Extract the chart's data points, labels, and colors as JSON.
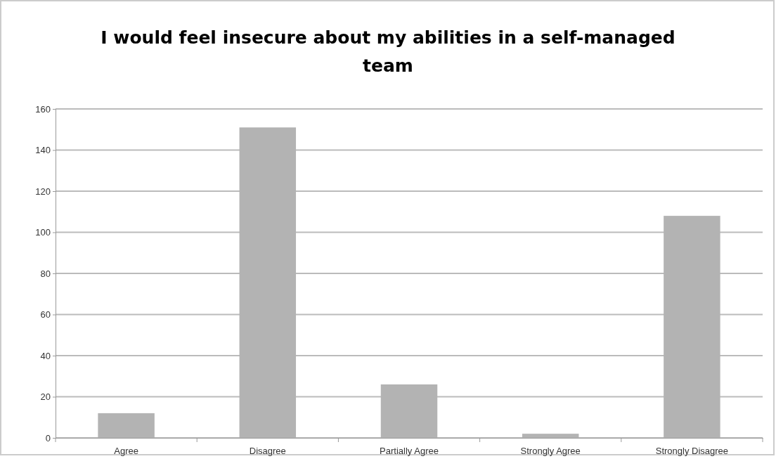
{
  "chart_data": {
    "type": "bar",
    "title": "I would feel insecure about my abilities in a self-managed team",
    "categories": [
      "Agree",
      "Disagree",
      "Partially Agree",
      "Strongly Agree",
      "Strongly Disagree"
    ],
    "values": [
      12,
      151,
      26,
      2,
      108
    ],
    "color": "#b3b3b3",
    "ylim": [
      0,
      160
    ],
    "yticks": [
      0,
      20,
      40,
      60,
      80,
      100,
      120,
      140,
      160
    ],
    "grid": "y"
  }
}
